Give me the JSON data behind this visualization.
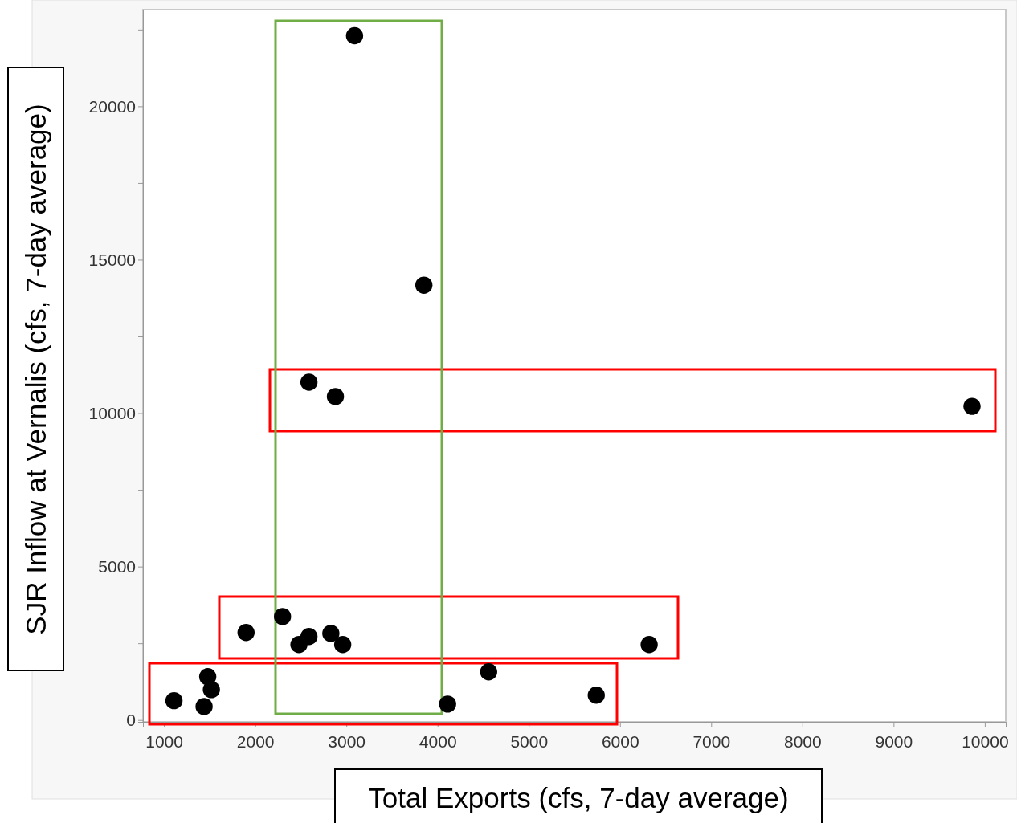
{
  "chart_data": {
    "type": "scatter",
    "xlabel": "Total Exports (cfs, 7-day average)",
    "ylabel": "SJR Inflow at Vernalis (cfs, 7-day average)",
    "xlim": [
      770,
      10230
    ],
    "xticks": [
      1000,
      2000,
      3000,
      4000,
      5000,
      6000,
      7000,
      8000,
      9000,
      10000
    ],
    "ylim": [
      -60,
      23150
    ],
    "yticks": [
      0,
      {
        "value": 2500,
        "label": null
      },
      5000,
      {
        "value": 7500,
        "label": null
      },
      10000,
      {
        "value": 12500,
        "label": null
      },
      15000,
      {
        "value": 17500,
        "label": null
      },
      20000,
      {
        "value": 22500,
        "label": null
      }
    ],
    "grid": false,
    "marker": "circle",
    "series": [
      {
        "color": "#000000",
        "x": [
          3090,
          3850,
          2590,
          2880,
          9860,
          2300,
          1900,
          2590,
          2830,
          2480,
          2960,
          6320,
          1480,
          1520,
          1110,
          1440,
          4110,
          4560,
          5740
        ],
        "values": [
          22300,
          14170,
          11010,
          10540,
          10220,
          3370,
          2850,
          2720,
          2820,
          2460,
          2460,
          2460,
          1410,
          990,
          630,
          440,
          520,
          1570,
          810
        ]
      }
    ]
  }
}
